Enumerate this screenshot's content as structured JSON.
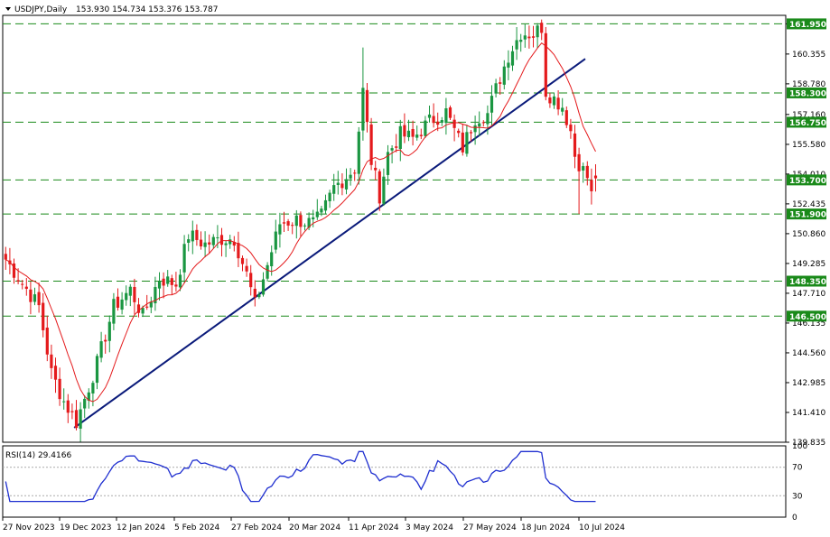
{
  "header": {
    "symbol": "USDJPY,Daily",
    "ohlc": "153.930 154.734 153.376 153.787"
  },
  "rsi_header": "RSI(14) 29.4166",
  "colors": {
    "bull": "#1a9641",
    "bear": "#e41a1c",
    "ma": "#e41a1c",
    "trendline": "#0a1a7a",
    "level": "#1a8a1a",
    "rsi": "#1f2fd0",
    "tag_bg": "#1a8a1a",
    "grid_dot": "#aaaaaa"
  },
  "chart_data": [
    {
      "type": "candlestick",
      "title": "USDJPY,Daily",
      "ylim": [
        139.835,
        162.4
      ],
      "y_ticks": [
        "161.950",
        "160.355",
        "158.780",
        "157.160",
        "155.580",
        "154.010",
        "152.435",
        "150.860",
        "149.285",
        "147.710",
        "146.135",
        "144.560",
        "142.985",
        "141.410",
        "139.835"
      ],
      "x_ticks": [
        "27 Nov 2023",
        "19 Dec 2023",
        "12 Jan 2024",
        "5 Feb 2024",
        "27 Feb 2024",
        "20 Mar 2024",
        "11 Apr 2024",
        "3 May 2024",
        "27 May 2024",
        "18 Jun 2024",
        "10 Jul 2024"
      ],
      "levels": [
        {
          "value": 161.95,
          "label": "161.950"
        },
        {
          "value": 158.3,
          "label": "158.300"
        },
        {
          "value": 156.75,
          "label": "156.750"
        },
        {
          "value": 153.7,
          "label": "153.700"
        },
        {
          "value": 151.9,
          "label": "151.900"
        },
        {
          "value": 148.35,
          "label": "148.350"
        },
        {
          "value": 146.5,
          "label": "146.500"
        }
      ],
      "trendline": {
        "from": {
          "bar": 17,
          "price": 140.6
        },
        "to": {
          "bar": 140,
          "price": 160.1
        }
      },
      "ma_period": 10,
      "anchors": [
        [
          0,
          149.5
        ],
        [
          8,
          147.0
        ],
        [
          11,
          143.5
        ],
        [
          14,
          142.0
        ],
        [
          17,
          140.9
        ],
        [
          22,
          144.0
        ],
        [
          26,
          147.0
        ],
        [
          30,
          147.9
        ],
        [
          33,
          146.5
        ],
        [
          37,
          148.5
        ],
        [
          41,
          148.2
        ],
        [
          44,
          150.8
        ],
        [
          48,
          150.3
        ],
        [
          52,
          150.6
        ],
        [
          55,
          150.6
        ],
        [
          58,
          148.7
        ],
        [
          60,
          147.1
        ],
        [
          63,
          149.2
        ],
        [
          66,
          151.4
        ],
        [
          70,
          151.6
        ],
        [
          74,
          151.4
        ],
        [
          76,
          151.8
        ],
        [
          79,
          153.3
        ],
        [
          84,
          154.3
        ],
        [
          86,
          158.4
        ],
        [
          88,
          154.7
        ],
        [
          90,
          152.9
        ],
        [
          92,
          155.1
        ],
        [
          95,
          156.1
        ],
        [
          98,
          155.9
        ],
        [
          102,
          156.8
        ],
        [
          106,
          157.3
        ],
        [
          108,
          156.3
        ],
        [
          110,
          155.4
        ],
        [
          113,
          157.0
        ],
        [
          116,
          157.2
        ],
        [
          118,
          158.5
        ],
        [
          121,
          160.3
        ],
        [
          124,
          161.5
        ],
        [
          127,
          161.4
        ],
        [
          129,
          161.8
        ],
        [
          130,
          158.4
        ],
        [
          134,
          157.6
        ],
        [
          136,
          156.3
        ],
        [
          137,
          155.0
        ],
        [
          140,
          153.8
        ]
      ],
      "last_two": [
        [
          153.7,
          153.1
        ],
        [
          153.93,
          153.787
        ]
      ]
    },
    {
      "type": "line",
      "title": "RSI(14) 29.4166",
      "ylim": [
        0,
        100
      ],
      "y_ticks": [
        "100",
        "70",
        "30",
        "0"
      ],
      "dotted_levels": [
        70,
        30
      ]
    }
  ]
}
